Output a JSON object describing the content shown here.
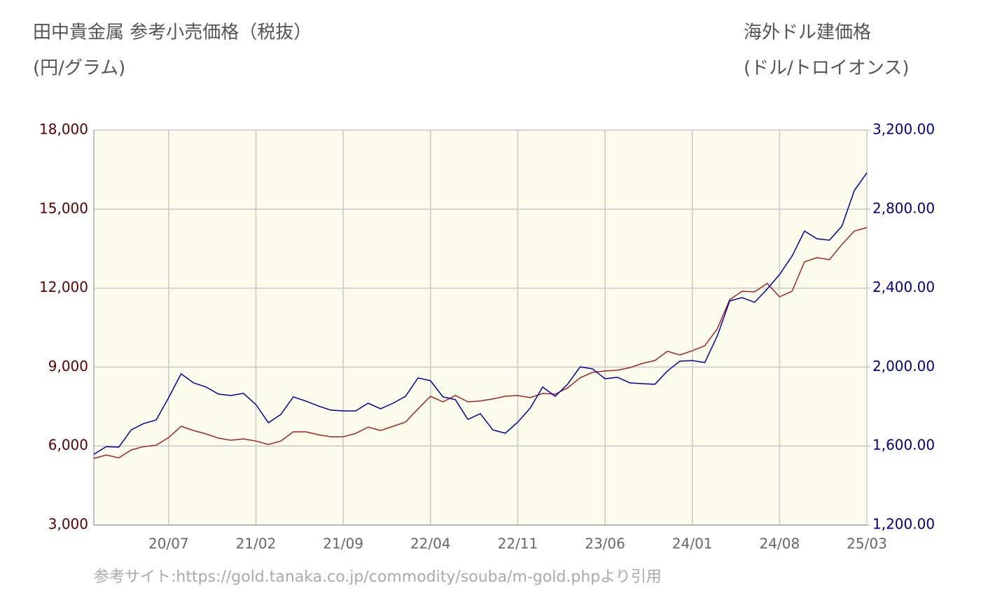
{
  "chart_data": {
    "type": "line",
    "title": "田中貴金属 参考小売価格（税抜）",
    "ylabel": "(円/グラム)",
    "y2title": "海外ドル建価格",
    "y2label": "(ドル/トロイオンス)",
    "source": "参考サイト:https://gold.tanaka.co.jp/commodity/souba/m-gold.phpより引用",
    "categories": [
      null,
      null,
      null,
      null,
      null,
      null,
      "20/07",
      null,
      null,
      null,
      null,
      null,
      null,
      "21/02",
      null,
      null,
      null,
      null,
      null,
      null,
      "21/09",
      null,
      null,
      null,
      null,
      null,
      null,
      "22/04",
      null,
      null,
      null,
      null,
      null,
      null,
      "22/11",
      null,
      null,
      null,
      null,
      null,
      null,
      "23/06",
      null,
      null,
      null,
      null,
      null,
      null,
      "24/01",
      null,
      null,
      null,
      null,
      null,
      null,
      "24/08",
      null,
      null,
      null,
      null,
      null,
      null,
      "25/03"
    ],
    "series": [
      {
        "color": "#a52222",
        "values": [
          5530,
          5660,
          5550,
          5850,
          5980,
          6030,
          6320,
          6750,
          6590,
          6460,
          6300,
          6220,
          6270,
          6190,
          6060,
          6190,
          6540,
          6540,
          6430,
          6350,
          6350,
          6480,
          6720,
          6590,
          6750,
          6910,
          7410,
          7890,
          7680,
          7920,
          7680,
          7710,
          7790,
          7890,
          7920,
          7840,
          8000,
          7970,
          8210,
          8590,
          8800,
          8850,
          8880,
          8980,
          9140,
          9250,
          9600,
          9460,
          9620,
          9810,
          10450,
          11560,
          11880,
          11860,
          12180,
          11670,
          11880,
          13000,
          13160,
          13080,
          13660,
          14170,
          14300
        ]
      },
      {
        "color": "#0000aa",
        "axis": "y2",
        "values": [
          1558,
          1597,
          1594,
          1682,
          1714,
          1732,
          1845,
          1966,
          1920,
          1899,
          1863,
          1856,
          1867,
          1810,
          1718,
          1760,
          1849,
          1828,
          1803,
          1782,
          1778,
          1778,
          1817,
          1789,
          1817,
          1852,
          1945,
          1931,
          1849,
          1835,
          1735,
          1764,
          1682,
          1665,
          1721,
          1792,
          1899,
          1852,
          1913,
          2001,
          1991,
          1941,
          1948,
          1920,
          1916,
          1913,
          1980,
          2030,
          2033,
          2023,
          2157,
          2335,
          2352,
          2328,
          2395,
          2469,
          2562,
          2689,
          2650,
          2643,
          2714,
          2895,
          2984
        ]
      }
    ],
    "ylim": [
      3000,
      18000
    ],
    "yticks": [
      {
        "value": 3000,
        "label": "3,000"
      },
      {
        "value": 6000,
        "label": "6,000"
      },
      {
        "value": 9000,
        "label": "9,000"
      },
      {
        "value": 12000,
        "label": "12,000"
      },
      {
        "value": 15000,
        "label": "15,000"
      },
      {
        "value": 18000,
        "label": "18,000"
      }
    ],
    "y2lim": [
      1200,
      3200
    ],
    "y2ticks": [
      {
        "value": 1200,
        "label": "1,200.00"
      },
      {
        "value": 1600,
        "label": "1,600.00"
      },
      {
        "value": 2000,
        "label": "2,000.00"
      },
      {
        "value": 2400,
        "label": "2,400.00"
      },
      {
        "value": 2800,
        "label": "2,800.00"
      },
      {
        "value": 3200,
        "label": "3,200.00"
      }
    ],
    "grid": true,
    "background": "#fcfcec"
  }
}
